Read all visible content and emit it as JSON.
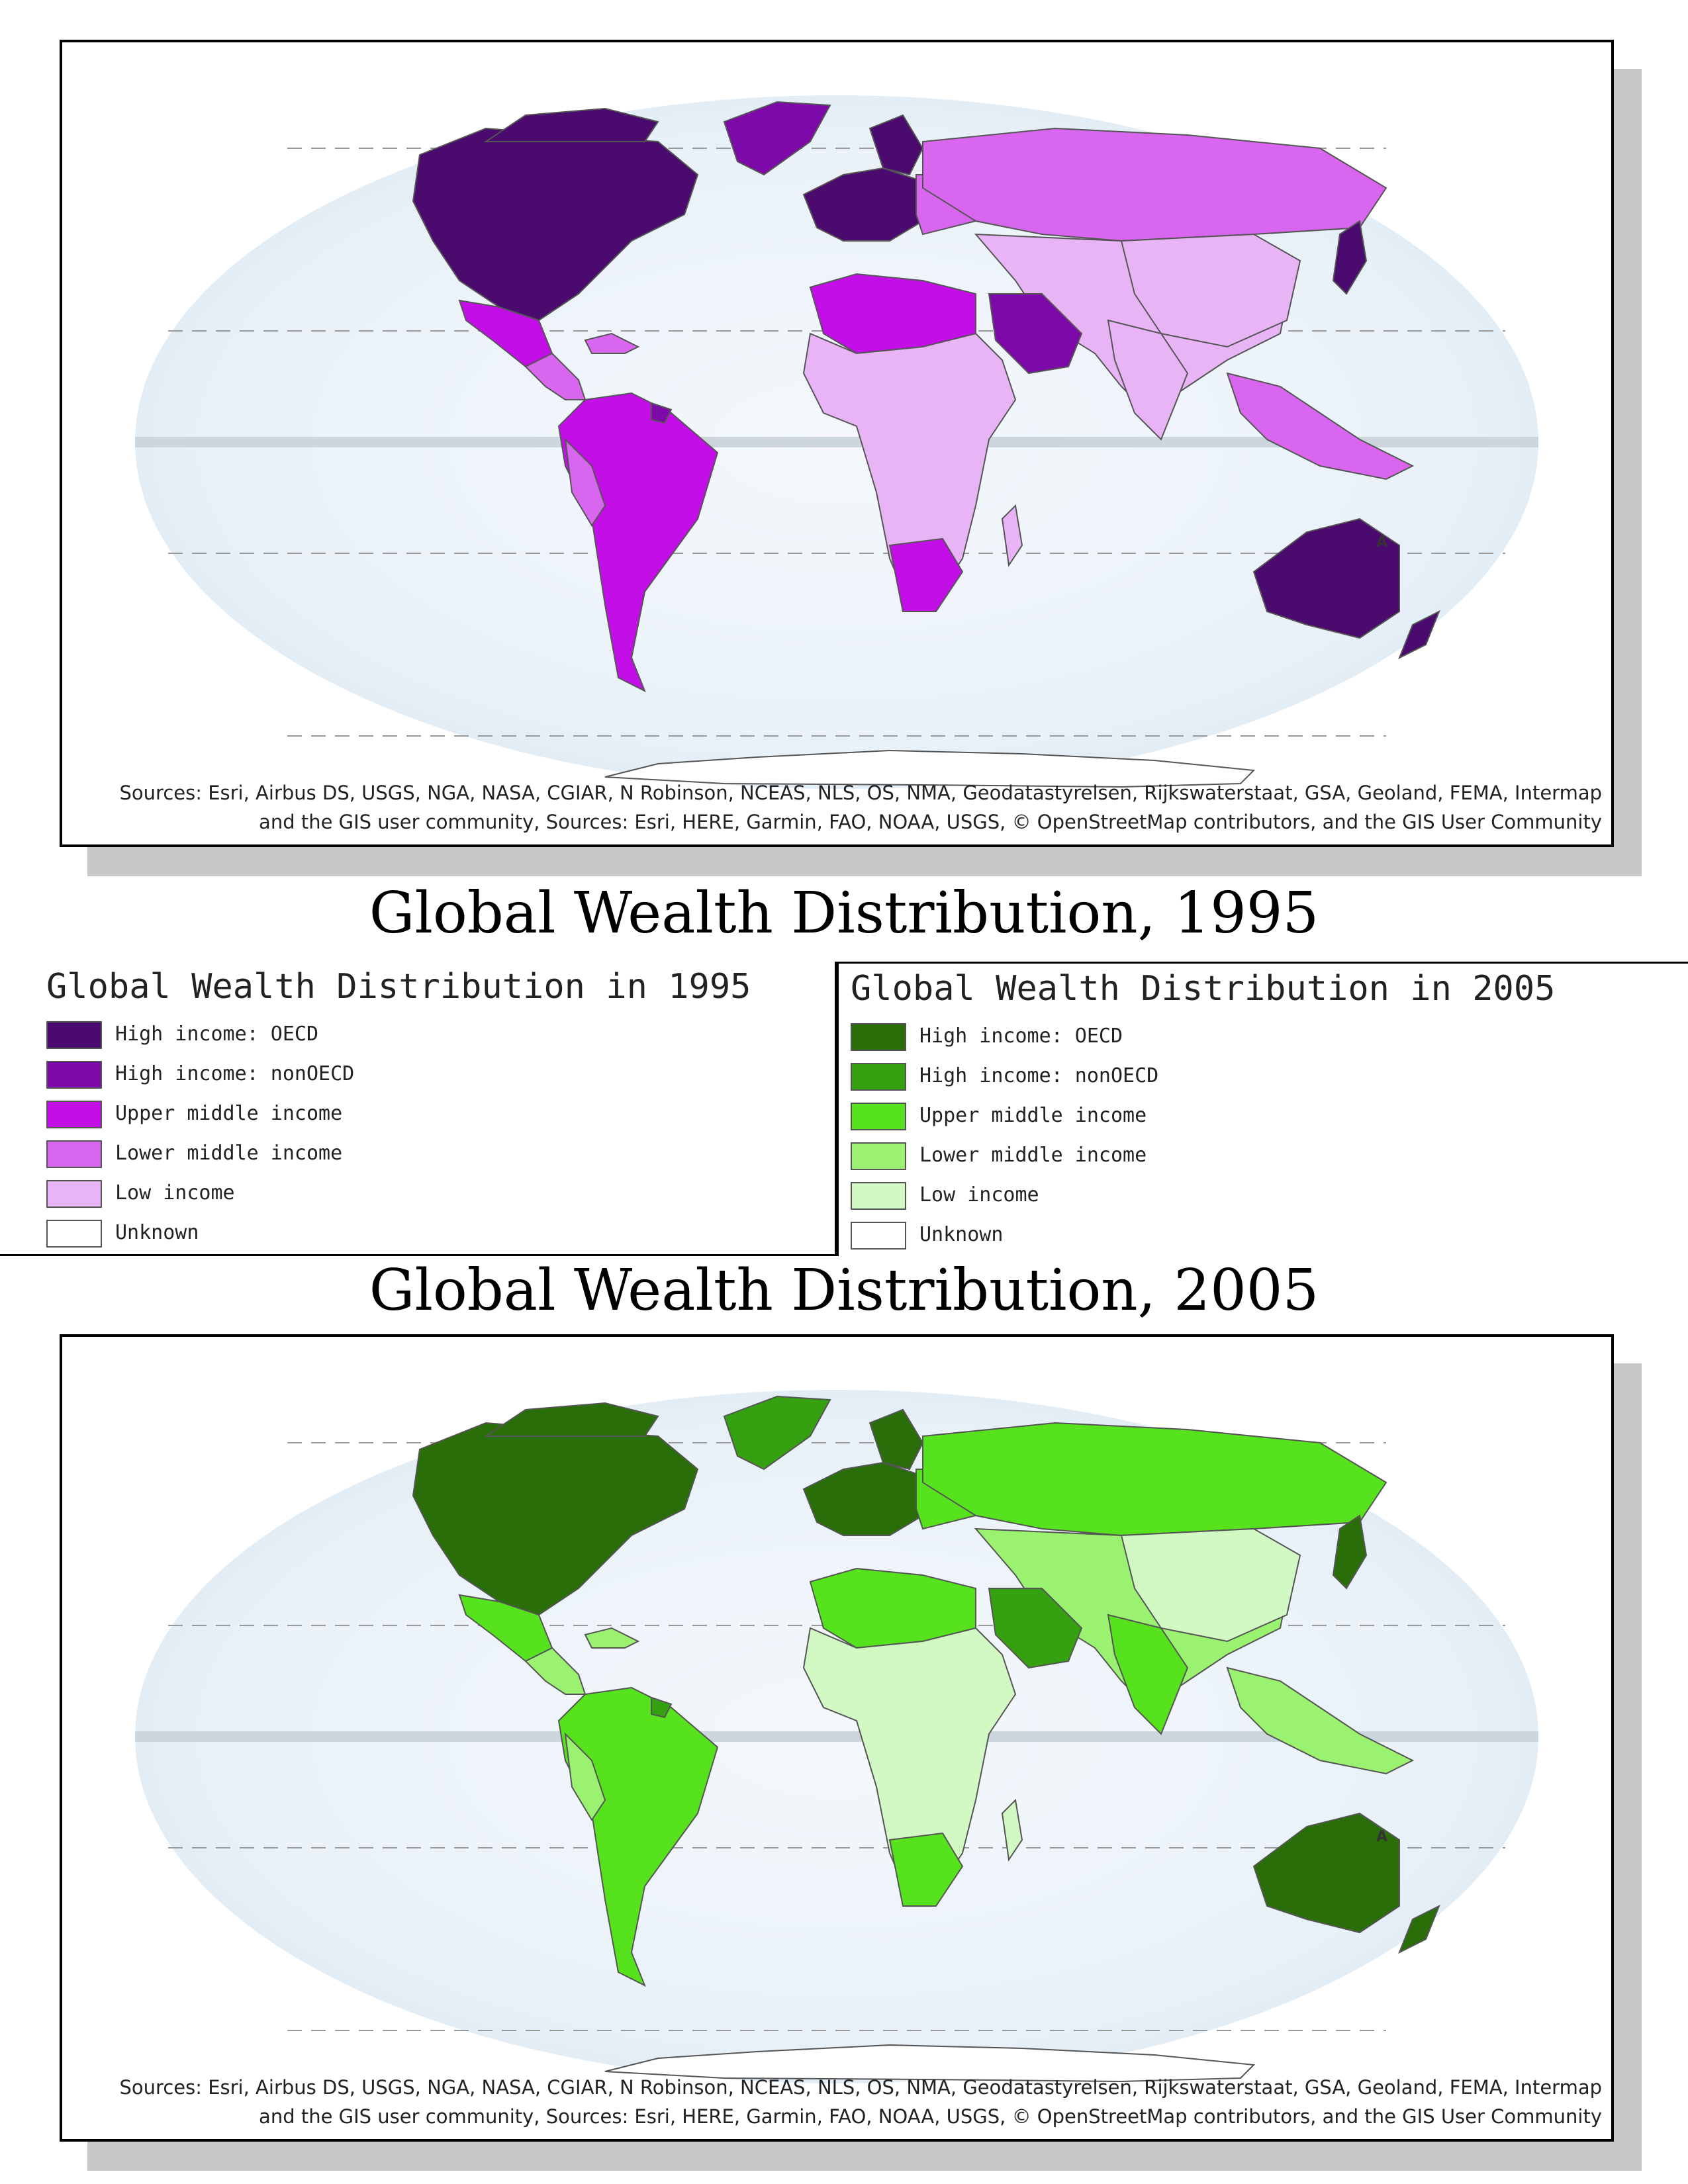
{
  "maps": [
    {
      "id": "map-1995",
      "title": "Global Wealth Distribution, 1995",
      "sources": "Sources: Esri, Airbus DS, USGS, NGA, NASA, CGIAR, N Robinson, NCEAS, NLS, OS, NMA, Geodatastyrelsen, Rijkswaterstaat, GSA, Geoland, FEMA, Intermap and the GIS user community, Sources:  Esri, HERE, Garmin, FAO, NOAA, USGS, © OpenStreetMap contributors, and the GIS User Community",
      "north_arrow": "A",
      "palette": {
        "high_oecd": "#4b0a6e",
        "high_nonoecd": "#7d0aa8",
        "upper_middle": "#c30ee8",
        "lower_middle": "#d966ee",
        "low": "#e8b4f5",
        "unknown": "#ffffff"
      }
    },
    {
      "id": "map-2005",
      "title": "Global Wealth Distribution, 2005",
      "sources": "Sources: Esri, Airbus DS, USGS, NGA, NASA, CGIAR, N Robinson, NCEAS, NLS, OS, NMA, Geodatastyrelsen, Rijkswaterstaat, GSA, Geoland, FEMA, Intermap and the GIS user community, Sources:  Esri, HERE, Garmin, FAO, NOAA, USGS, © OpenStreetMap contributors, and the GIS User Community",
      "north_arrow": "A",
      "palette": {
        "high_oecd": "#2a6e0a",
        "high_nonoecd": "#35a010",
        "upper_middle": "#56e21c",
        "lower_middle": "#9af270",
        "low": "#d2f8c4",
        "unknown": "#ffffff"
      }
    }
  ],
  "legends": [
    {
      "title": "Global Wealth Distribution in 1995",
      "items": [
        {
          "label": "High income: OECD",
          "color": "#4b0a6e"
        },
        {
          "label": "High income: nonOECD",
          "color": "#7d0aa8"
        },
        {
          "label": "Upper middle income",
          "color": "#c30ee8"
        },
        {
          "label": "Lower middle income",
          "color": "#d966ee"
        },
        {
          "label": "Low income",
          "color": "#e8b4f5"
        },
        {
          "label": "Unknown",
          "color": "#ffffff"
        }
      ]
    },
    {
      "title": "Global Wealth Distribution in 2005",
      "items": [
        {
          "label": "High income: OECD",
          "color": "#2a6e0a"
        },
        {
          "label": "High income: nonOECD",
          "color": "#35a010"
        },
        {
          "label": "Upper middle income",
          "color": "#56e21c"
        },
        {
          "label": "Lower middle income",
          "color": "#9af270"
        },
        {
          "label": "Low income",
          "color": "#d2f8c4"
        },
        {
          "label": "Unknown",
          "color": "#ffffff"
        }
      ]
    }
  ]
}
